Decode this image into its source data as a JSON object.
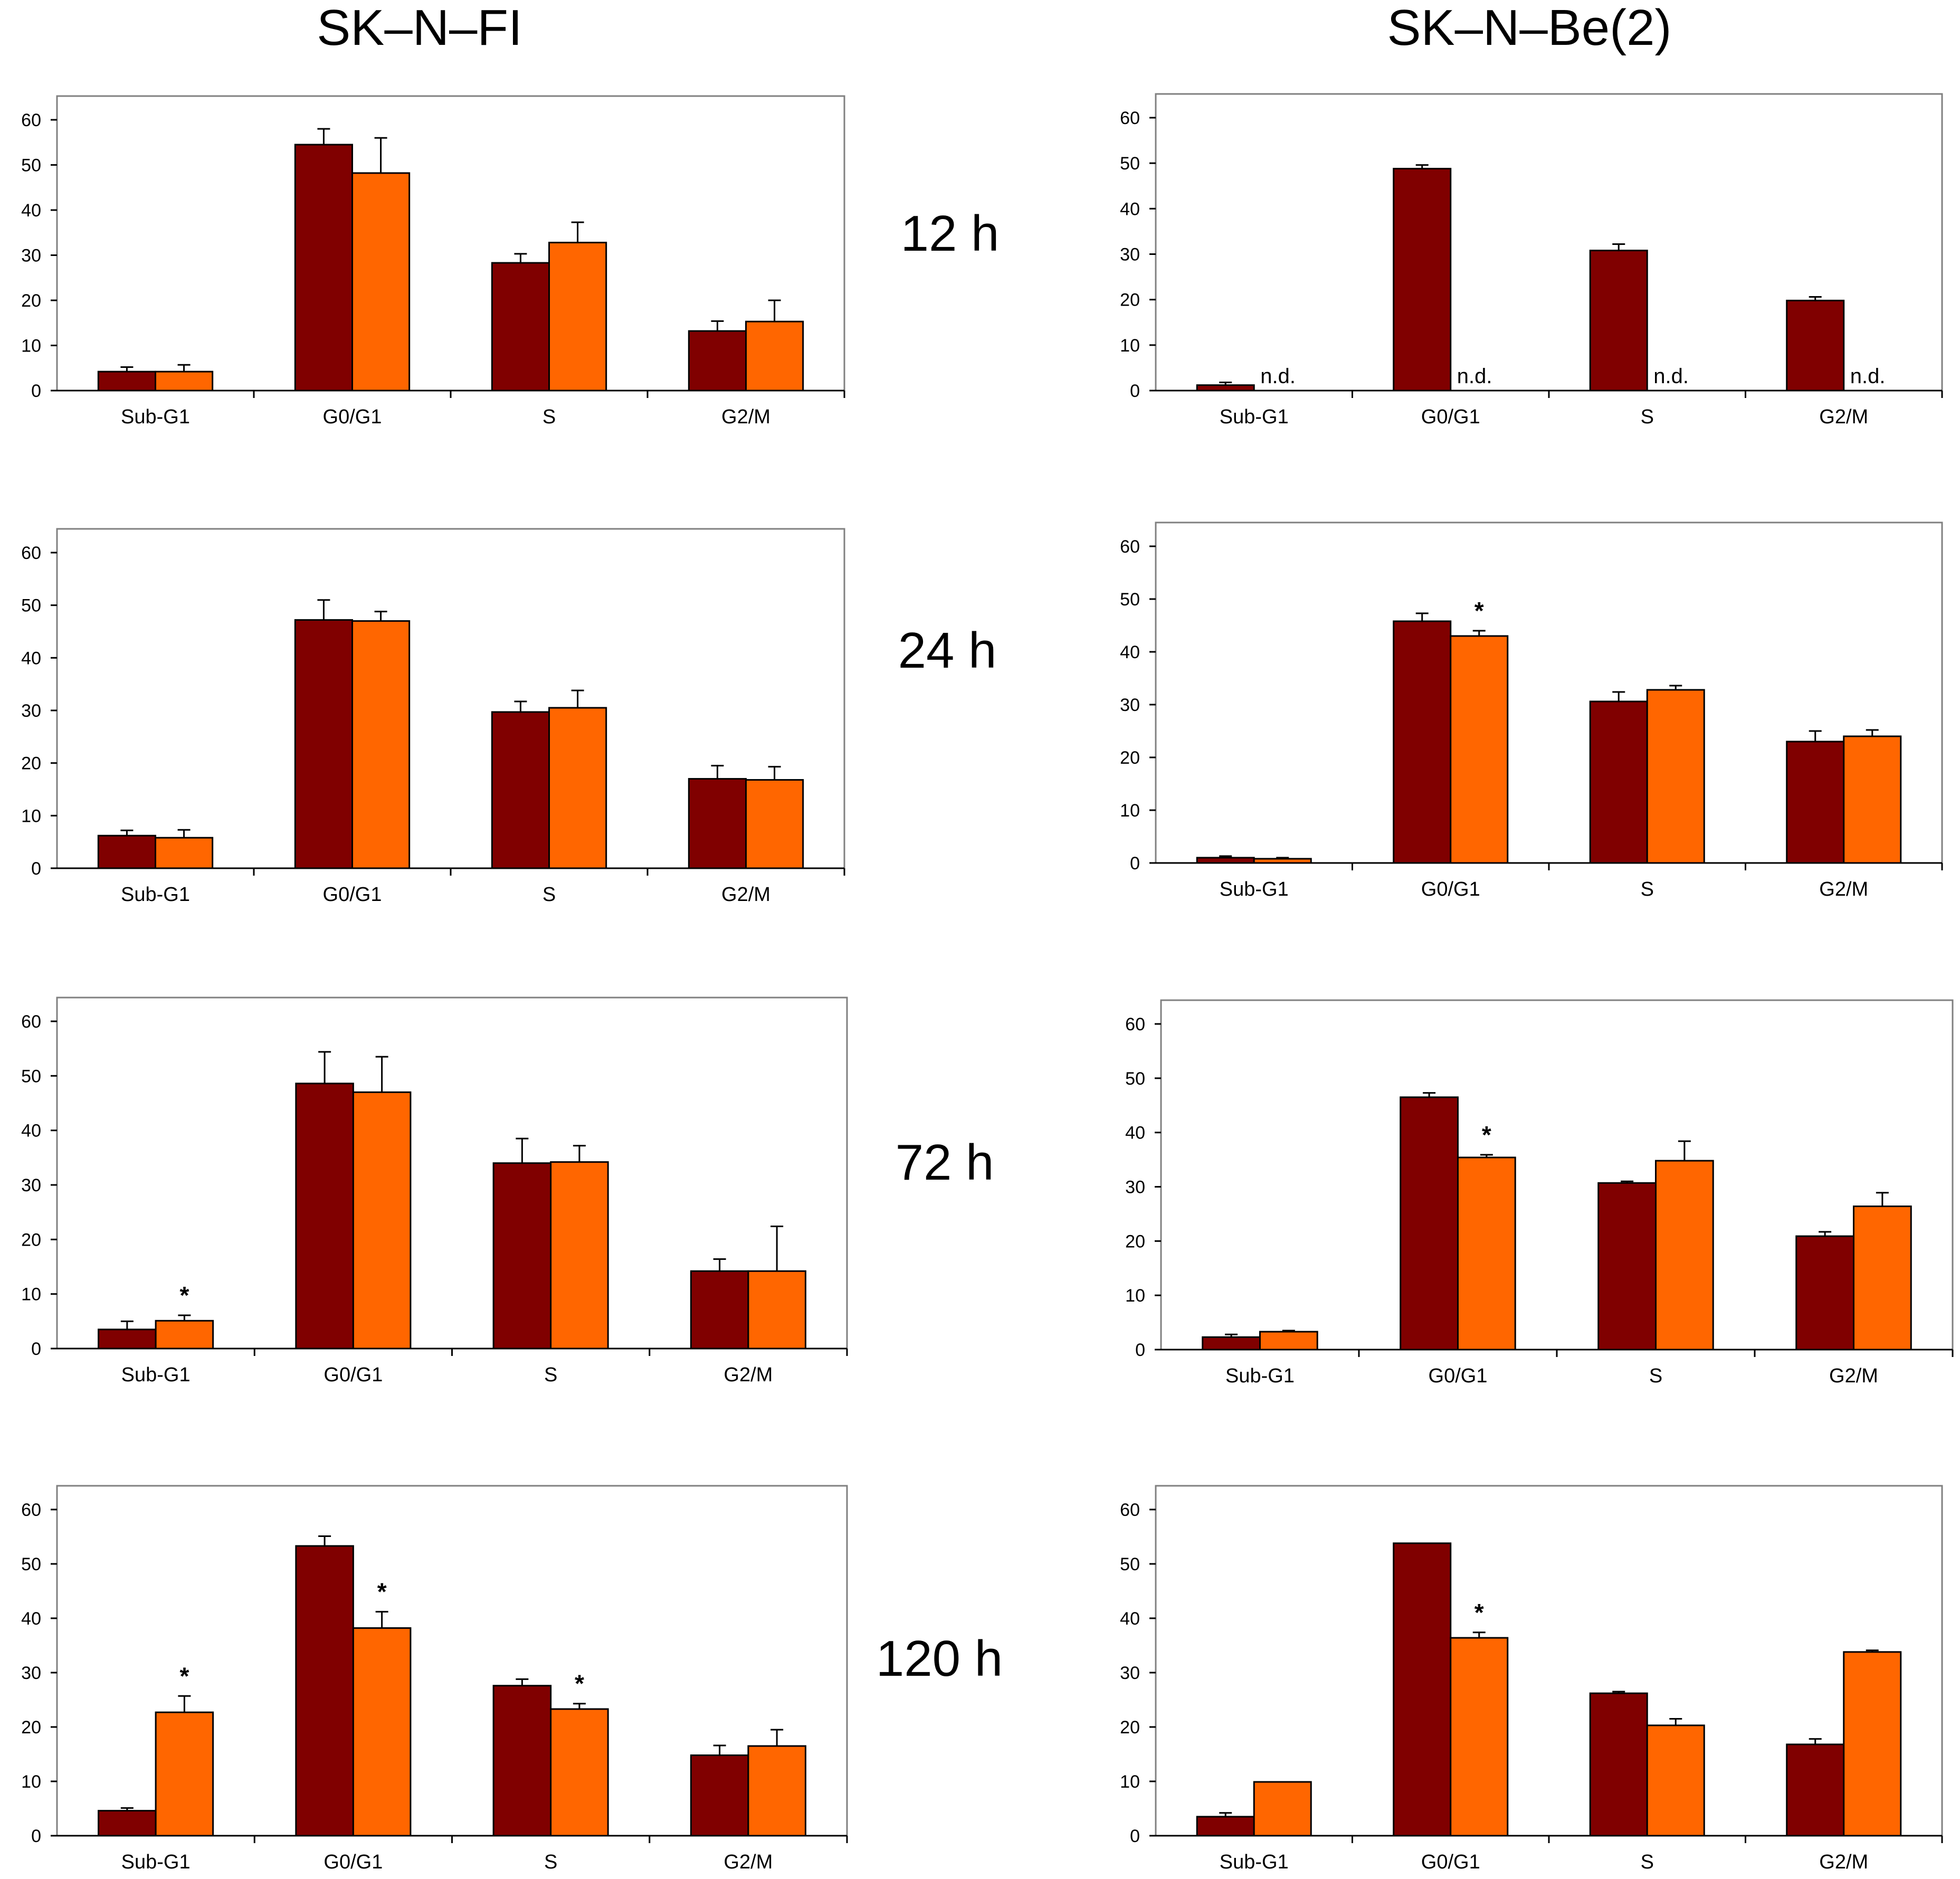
{
  "columns": [
    "SK–N–FI",
    "SK–N–Be(2)"
  ],
  "time_labels": [
    "12 h",
    "24 h",
    "72 h",
    "120 h"
  ],
  "colors": {
    "series1": "#800000",
    "series2": "#ff6600",
    "frame": "#808080",
    "error_bar": "#000000"
  },
  "chart_data": [
    {
      "type": "bar",
      "row": 0,
      "col": 0,
      "categories": [
        "Sub-G1",
        "G0/G1",
        "S",
        "G2/M"
      ],
      "ylim": [
        0,
        60
      ],
      "yticks": [
        0,
        10,
        20,
        30,
        40,
        50,
        60
      ],
      "series": [
        {
          "values": [
            4.2,
            54.5,
            28.3,
            13.2
          ],
          "errors": [
            1.0,
            3.5,
            2.0,
            2.2
          ]
        },
        {
          "values": [
            4.2,
            48.2,
            32.8,
            15.3
          ],
          "errors": [
            1.5,
            7.8,
            4.5,
            4.7
          ]
        }
      ],
      "nd": [],
      "stars": []
    },
    {
      "type": "bar",
      "row": 0,
      "col": 1,
      "categories": [
        "Sub-G1",
        "G0/G1",
        "S",
        "G2/M"
      ],
      "ylim": [
        0,
        60
      ],
      "yticks": [
        0,
        10,
        20,
        30,
        40,
        50,
        60
      ],
      "series": [
        {
          "values": [
            1.2,
            48.8,
            30.8,
            19.8
          ],
          "errors": [
            0.6,
            0.8,
            1.4,
            0.8
          ]
        },
        {
          "values": [
            null,
            null,
            null,
            null
          ],
          "errors": [
            null,
            null,
            null,
            null
          ]
        }
      ],
      "nd": [
        "n.d.",
        "n.d.",
        "n.d.",
        "n.d."
      ],
      "stars": []
    },
    {
      "type": "bar",
      "row": 1,
      "col": 0,
      "categories": [
        "Sub-G1",
        "G0/G1",
        "S",
        "G2/M"
      ],
      "ylim": [
        0,
        60
      ],
      "yticks": [
        0,
        10,
        20,
        30,
        40,
        50,
        60
      ],
      "series": [
        {
          "values": [
            6.2,
            47.2,
            29.7,
            17.0
          ],
          "errors": [
            1.0,
            3.8,
            2.0,
            2.5
          ]
        },
        {
          "values": [
            5.8,
            47.0,
            30.5,
            16.8
          ],
          "errors": [
            1.5,
            1.8,
            3.3,
            2.5
          ]
        }
      ],
      "nd": [],
      "stars": []
    },
    {
      "type": "bar",
      "row": 1,
      "col": 1,
      "categories": [
        "Sub-G1",
        "G0/G1",
        "S",
        "G2/M"
      ],
      "ylim": [
        0,
        60
      ],
      "yticks": [
        0,
        10,
        20,
        30,
        40,
        50,
        60
      ],
      "series": [
        {
          "values": [
            1.0,
            45.8,
            30.6,
            23.0
          ],
          "errors": [
            0.3,
            1.5,
            1.8,
            2.0
          ]
        },
        {
          "values": [
            0.8,
            43.0,
            32.8,
            24.0
          ],
          "errors": [
            0.2,
            1.0,
            0.8,
            1.2
          ]
        }
      ],
      "nd": [],
      "stars": [
        null,
        "*",
        null,
        null
      ]
    },
    {
      "type": "bar",
      "row": 2,
      "col": 0,
      "categories": [
        "Sub-G1",
        "G0/G1",
        "S",
        "G2/M"
      ],
      "ylim": [
        0,
        60
      ],
      "yticks": [
        0,
        10,
        20,
        30,
        40,
        50,
        60
      ],
      "series": [
        {
          "values": [
            3.5,
            48.6,
            34.0,
            14.2
          ],
          "errors": [
            1.5,
            5.8,
            4.5,
            2.2
          ]
        },
        {
          "values": [
            5.1,
            47.0,
            34.2,
            14.2
          ],
          "errors": [
            1.0,
            6.5,
            3.0,
            8.2
          ]
        }
      ],
      "nd": [],
      "stars": [
        null,
        null,
        null,
        null
      ],
      "stars2": [
        "*",
        null,
        null,
        null
      ]
    },
    {
      "type": "bar",
      "row": 2,
      "col": 1,
      "categories": [
        "Sub-G1",
        "G0/G1",
        "S",
        "G2/M"
      ],
      "ylim": [
        0,
        60
      ],
      "yticks": [
        0,
        10,
        20,
        30,
        40,
        50,
        60
      ],
      "series": [
        {
          "values": [
            2.3,
            46.5,
            30.7,
            20.9
          ],
          "errors": [
            0.5,
            0.8,
            0.3,
            0.8
          ]
        },
        {
          "values": [
            3.3,
            35.4,
            34.8,
            26.4
          ],
          "errors": [
            0.2,
            0.5,
            3.6,
            2.5
          ]
        }
      ],
      "nd": [],
      "stars": [
        null,
        null,
        null,
        null
      ],
      "stars2": [
        null,
        "*",
        null,
        null
      ]
    },
    {
      "type": "bar",
      "row": 3,
      "col": 0,
      "categories": [
        "Sub-G1",
        "G0/G1",
        "S",
        "G2/M"
      ],
      "ylim": [
        0,
        60
      ],
      "yticks": [
        0,
        10,
        20,
        30,
        40,
        50,
        60
      ],
      "series": [
        {
          "values": [
            4.6,
            53.3,
            27.6,
            14.8
          ],
          "errors": [
            0.5,
            1.8,
            1.2,
            1.8
          ]
        },
        {
          "values": [
            22.7,
            38.2,
            23.3,
            16.5
          ],
          "errors": [
            3.0,
            3.0,
            1.0,
            3.0
          ]
        }
      ],
      "nd": [],
      "stars": [
        null,
        null,
        null,
        null
      ],
      "stars2": [
        "*",
        "*",
        "*",
        null
      ]
    },
    {
      "type": "bar",
      "row": 3,
      "col": 1,
      "categories": [
        "Sub-G1",
        "G0/G1",
        "S",
        "G2/M"
      ],
      "ylim": [
        0,
        60
      ],
      "yticks": [
        0,
        10,
        20,
        30,
        40,
        50,
        60
      ],
      "series": [
        {
          "values": [
            3.5,
            53.8,
            26.2,
            16.8
          ],
          "errors": [
            0.7,
            0,
            0.3,
            1.0
          ]
        },
        {
          "values": [
            9.9,
            36.4,
            20.3,
            33.8
          ],
          "errors": [
            0,
            1.0,
            1.2,
            0.3
          ]
        }
      ],
      "nd": [],
      "stars": [
        null,
        null,
        null,
        null
      ],
      "stars2": [
        null,
        "*",
        null,
        null
      ]
    }
  ]
}
